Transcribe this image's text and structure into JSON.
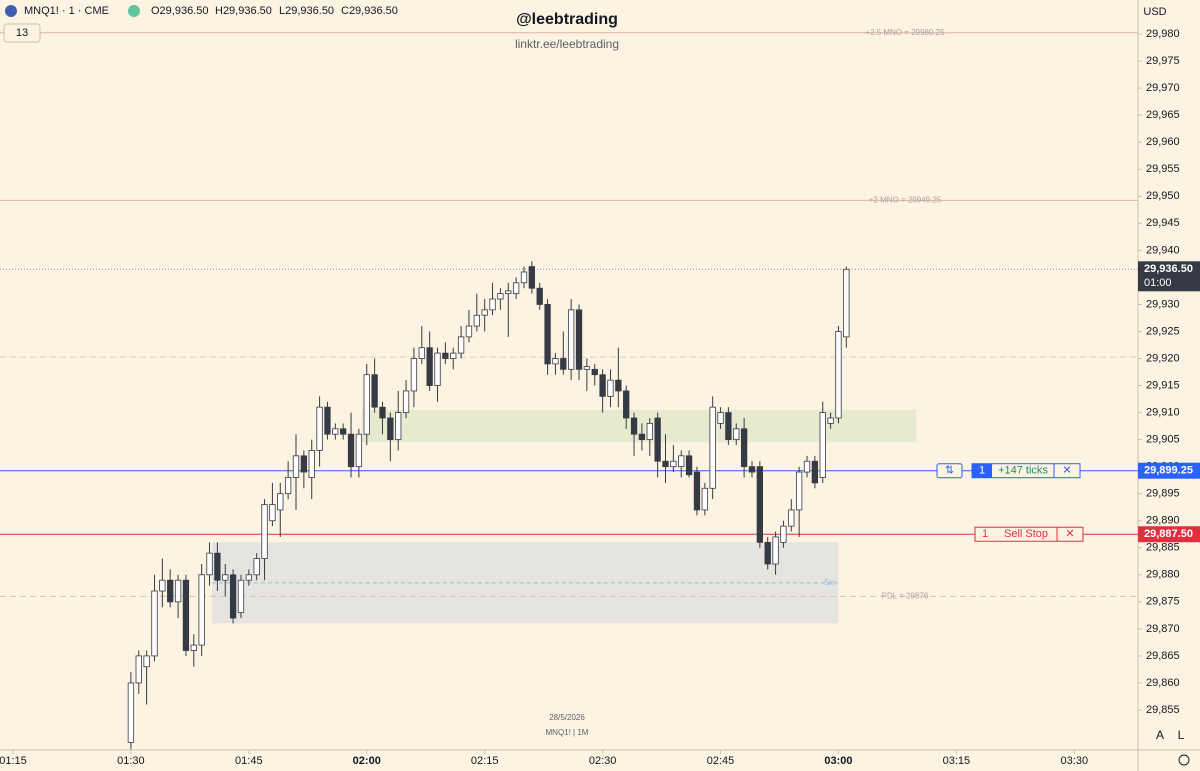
{
  "header": {
    "symbol": "MNQ1! · 1 · CME",
    "ohlc": [
      "O29,936.50",
      "H29,936.50",
      "L29,936.50",
      "C29,936.50"
    ],
    "indicator_count": "13",
    "currency": "USD",
    "scale_buttons": [
      "A",
      "L"
    ]
  },
  "watermark": {
    "handle": "@leebtrading",
    "link": "linktr.ee/leebtrading",
    "date": "28/5/2026",
    "symbol": "MNQ1! | 1M"
  },
  "chart_data": {
    "type": "candlestick",
    "x": [
      90,
      91,
      92,
      93,
      94,
      95,
      96,
      97,
      98,
      99,
      100,
      101,
      102,
      103,
      104,
      105,
      106,
      107,
      108,
      109,
      110,
      111,
      112,
      113,
      114,
      115,
      116,
      117,
      118,
      119,
      120,
      121,
      122,
      123,
      124,
      125,
      126,
      127,
      128,
      129,
      130,
      131,
      132,
      133,
      134,
      135,
      136,
      137,
      138,
      139,
      140,
      141,
      142,
      143,
      144,
      145,
      146,
      147,
      148,
      149,
      150,
      151,
      152,
      153,
      154,
      155,
      156,
      157,
      158,
      159,
      160,
      161,
      162,
      163,
      164,
      165,
      166,
      167,
      168,
      169,
      170,
      171,
      172,
      173,
      174,
      175,
      176,
      177,
      178,
      179,
      180,
      181
    ],
    "open": [
      29849,
      29860,
      29863,
      29865,
      29877,
      29879,
      29875,
      29879,
      29866,
      29867,
      29880,
      29884,
      29879,
      29880,
      29873,
      29879,
      29880,
      29883,
      29890,
      29892,
      29895,
      29898,
      29902,
      29898,
      29903,
      29911,
      29906,
      29907,
      29906,
      29900,
      29906,
      29917,
      29911,
      29909,
      29905,
      29910,
      29914,
      29920,
      29922,
      29915,
      29921,
      29920,
      29921,
      29924,
      29926,
      29928,
      29929,
      29931,
      29932,
      29932,
      29934,
      29937,
      29933,
      29930,
      29919,
      29920,
      29918,
      29929,
      29918,
      29918,
      29917,
      29913,
      29916,
      29914,
      29909,
      29906,
      29905,
      29909,
      29901,
      29900,
      29900,
      29902,
      29899,
      29892,
      29896,
      29908,
      29910,
      29905,
      29907,
      29900,
      29900,
      29886,
      29882,
      29886,
      29889,
      29892,
      29899,
      29901,
      29898,
      29908,
      29909,
      29924
    ],
    "high": [
      29862,
      29866,
      29866,
      29880,
      29883,
      29881,
      29880,
      29880,
      29869,
      29882,
      29886,
      29886,
      29882,
      29881,
      29880,
      29881,
      29884,
      29894,
      29897,
      29897,
      29901,
      29906,
      29903,
      29905,
      29913,
      29912,
      29908,
      29908,
      29910,
      29907,
      29919,
      29920,
      29912,
      29910,
      29914,
      29916,
      29922,
      29926,
      29925,
      29922,
      29923,
      29922,
      29926,
      29929,
      29932,
      29931,
      29934,
      29933,
      29934,
      29935,
      29937,
      29938,
      29934,
      29931,
      29921,
      29925,
      29931,
      29930,
      29920,
      29919,
      29918,
      29918,
      29922,
      29915,
      29910,
      29908,
      29909,
      29910,
      29906,
      29904,
      29903,
      29903,
      29900,
      29897,
      29913,
      29911,
      29911,
      29908,
      29909,
      29901,
      29901,
      29887,
      29888,
      29890,
      29894,
      29900,
      29902,
      29902,
      29912,
      29910,
      29926,
      29937
    ],
    "low": [
      29847.75,
      29858,
      29856,
      29864,
      29874,
      29874,
      29872,
      29865,
      29863,
      29865,
      29878,
      29877,
      29876,
      29871,
      29872,
      29878,
      29879,
      29879,
      29889,
      29887,
      29894,
      29892,
      29896,
      29894,
      29900,
      29905,
      29905,
      29905,
      29898,
      29898,
      29904,
      29910,
      29906,
      29901,
      29903,
      29909,
      29911,
      29919,
      29914,
      29912,
      29919,
      29918,
      29920,
      29923,
      29925,
      29925,
      29928,
      29929,
      29924,
      29931,
      29933,
      29932,
      29929,
      29917,
      29917,
      29917,
      29916,
      29916,
      29914,
      29915,
      29910,
      29911,
      29911,
      29907,
      29902,
      29903,
      29902,
      29898,
      29897,
      29899,
      29898,
      29898,
      29891,
      29891,
      29894,
      29907,
      29904,
      29904,
      29898,
      29898,
      29885,
      29881,
      29880,
      29885,
      29888,
      29887,
      29898,
      29896,
      29897,
      29907,
      29908,
      29922
    ],
    "close": [
      29860,
      29865,
      29865,
      29877,
      29879,
      29875,
      29879,
      29866,
      29867,
      29880,
      29884,
      29879,
      29880,
      29872,
      29879,
      29880,
      29883,
      29893,
      29893,
      29895,
      29898,
      29902,
      29899,
      29903,
      29911,
      29906,
      29907,
      29906,
      29900,
      29906,
      29917,
      29911,
      29909,
      29905,
      29910,
      29914,
      29920,
      29922,
      29915,
      29921,
      29920,
      29921,
      29924,
      29926,
      29928,
      29929,
      29931,
      29932,
      29932.5,
      29934,
      29936,
      29933,
      29930,
      29919,
      29920,
      29918,
      29929,
      29918,
      29918.5,
      29917,
      29913,
      29916,
      29914,
      29909,
      29906,
      29905,
      29908,
      29901,
      29900,
      29901,
      29902,
      29898.5,
      29892,
      29896,
      29911,
      29910,
      29905,
      29907,
      29900,
      29899,
      29886,
      29882,
      29887,
      29889,
      29892,
      29899,
      29901,
      29897,
      29910,
      29909,
      29925,
      29936.5
    ],
    "up_color": "#ffffff",
    "down_color": "#363a45",
    "outline_color": "#363a45",
    "xlim": [
      73.35,
      218.1
    ],
    "xticks": [
      {
        "value": 75,
        "label": "01:15"
      },
      {
        "value": 90,
        "label": "01:30"
      },
      {
        "value": 105,
        "label": "01:45"
      },
      {
        "value": 120,
        "label": "02:00"
      },
      {
        "value": 135,
        "label": "02:15"
      },
      {
        "value": 150,
        "label": "02:30"
      },
      {
        "value": 165,
        "label": "02:45"
      },
      {
        "value": 180,
        "label": "03:00"
      },
      {
        "value": 195,
        "label": "03:15"
      },
      {
        "value": 210,
        "label": "03:30"
      }
    ],
    "ylim": [
      29847.6,
      29986.3
    ],
    "yticks": [
      {
        "value": 29855,
        "label": "29,855"
      },
      {
        "value": 29860,
        "label": "29,860"
      },
      {
        "value": 29865,
        "label": "29,865"
      },
      {
        "value": 29870,
        "label": "29,870"
      },
      {
        "value": 29875,
        "label": "29,875"
      },
      {
        "value": 29880,
        "label": "29,880"
      },
      {
        "value": 29885,
        "label": "29,885"
      },
      {
        "value": 29890,
        "label": "29,890"
      },
      {
        "value": 29895,
        "label": "29,895"
      },
      {
        "value": 29900,
        "label": "29,900"
      },
      {
        "value": 29905,
        "label": "29,905"
      },
      {
        "value": 29910,
        "label": "29,910"
      },
      {
        "value": 29915,
        "label": "29,915"
      },
      {
        "value": 29920,
        "label": "29,920"
      },
      {
        "value": 29925,
        "label": "29,925"
      },
      {
        "value": 29930,
        "label": "29,930"
      },
      {
        "value": 29935,
        "label": "29,935"
      },
      {
        "value": 29940,
        "label": "29,940"
      },
      {
        "value": 29945,
        "label": "29,945"
      },
      {
        "value": 29950,
        "label": "29,950"
      },
      {
        "value": 29955,
        "label": "29,955"
      },
      {
        "value": 29960,
        "label": "29,960"
      },
      {
        "value": 29965,
        "label": "29,965"
      },
      {
        "value": 29970,
        "label": "29,970"
      },
      {
        "value": 29975,
        "label": "29,975"
      },
      {
        "value": 29980,
        "label": "29,980"
      }
    ],
    "bold_xticks": [
      120,
      180
    ],
    "zones": [
      {
        "low": 29904.5,
        "high": 29910.5,
        "x0": 119.4,
        "x1": 189.9,
        "color": "#e8ead0"
      },
      {
        "low": 29871,
        "high": 29886,
        "x0": 100.3,
        "x1": 180,
        "color": "#e6e4e0"
      }
    ],
    "levels": [
      {
        "label": "+2.5 MNO = 29980.25",
        "value": 29980.25,
        "color": "#d9b3ad",
        "dash": false
      },
      {
        "label": "+2 MNO = 29949.25",
        "value": 29949.25,
        "color": "#d9b3ad",
        "dash": false
      },
      {
        "label": "PDL = 29876",
        "value": 29876,
        "color": "#c9c3ba",
        "dash": true
      },
      {
        "value": 29920.25,
        "color": "#d9cfc0",
        "dash": true
      }
    ],
    "inner_level": {
      "label": "5m",
      "value": 29878.5,
      "x0": 100.3,
      "x1": 180,
      "color": "#9bb7e6"
    },
    "last_price": {
      "value": 29936.5,
      "label": "29,936.50",
      "countdown": "01:00"
    },
    "orders": [
      {
        "value": 29899.25,
        "label": "29,899.25",
        "qty": "1",
        "text": "+147 ticks",
        "color": "#2962ff"
      },
      {
        "value": 29887.5,
        "label": "29,887.50",
        "qty": "1",
        "text": "Sell Stop",
        "color": "#e0303f"
      }
    ]
  }
}
